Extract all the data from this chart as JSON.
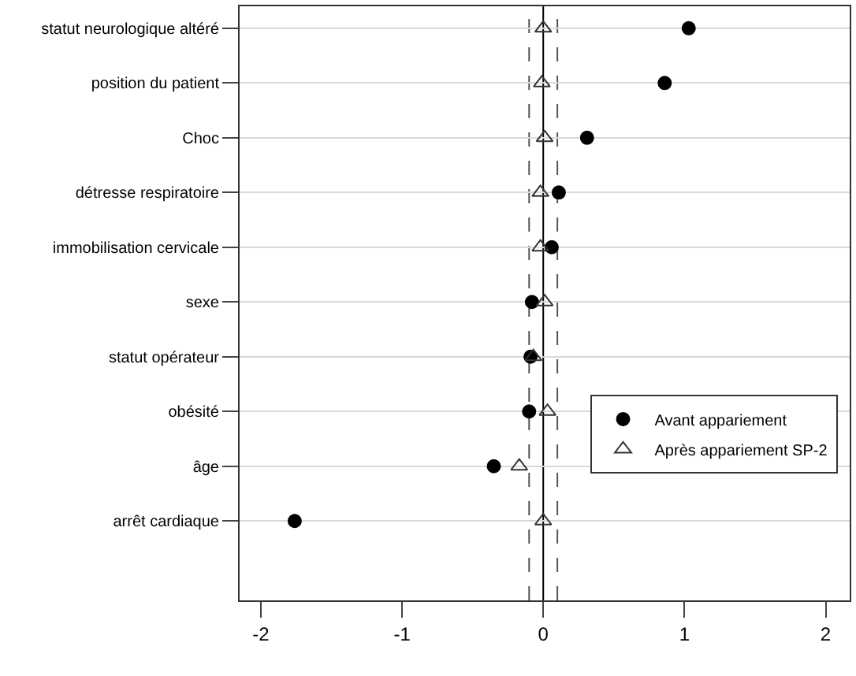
{
  "chart_data": {
    "type": "scatter",
    "categories": [
      "statut neurologique altéré",
      "position du patient",
      "Choc",
      "détresse respiratoire",
      "immobilisation cervicale",
      "sexe",
      "statut opérateur",
      "obésité",
      "âge",
      "arrêt cardiaque"
    ],
    "series": [
      {
        "name": "Avant appariement",
        "color": "#000000",
        "marker": "circle",
        "values": [
          1.03,
          0.86,
          0.31,
          0.11,
          0.06,
          -0.08,
          -0.09,
          -0.1,
          -0.35,
          -1.76
        ]
      },
      {
        "name": "Après appariement SP-2",
        "color": "#333333",
        "marker": "triangle",
        "values": [
          0.0,
          -0.01,
          0.01,
          -0.02,
          -0.02,
          0.01,
          -0.07,
          0.03,
          -0.17,
          0.0
        ]
      }
    ],
    "xlim": [
      -2.15,
      2.17
    ],
    "xticks": [
      -2,
      -1,
      0,
      1,
      2
    ],
    "ref_lines": [
      {
        "axis": "x",
        "value": 0,
        "color": "#000000",
        "line_style": "solid"
      },
      {
        "axis": "x",
        "value": -0.1,
        "color": "#555555",
        "line_style": "dashed"
      },
      {
        "axis": "x",
        "value": 0.1,
        "color": "#555555",
        "line_style": "dashed"
      }
    ],
    "grid": "y",
    "legend": "right",
    "orientation": "horizontal"
  }
}
